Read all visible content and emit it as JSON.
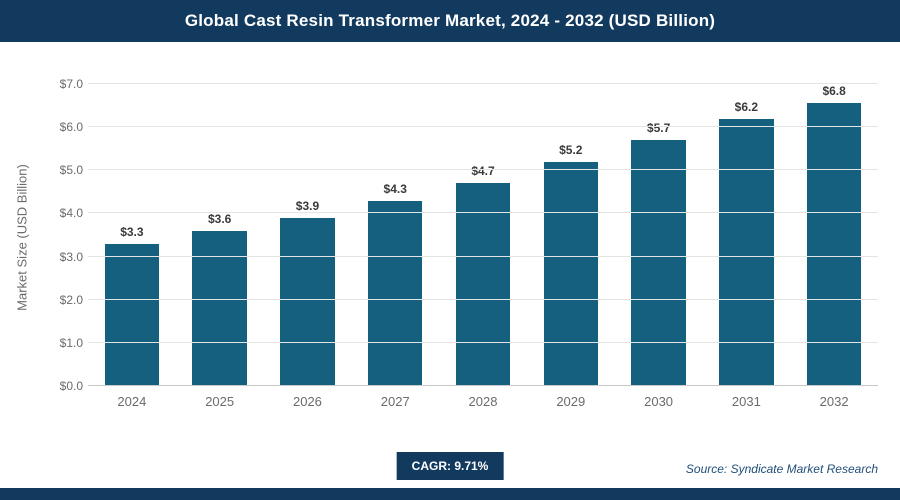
{
  "header": {
    "title": "Global Cast Resin Transformer Market, 2024 - 2032 (USD Billion)"
  },
  "chart_data": {
    "type": "bar",
    "title": "Global Cast Resin Transformer Market, 2024 - 2032 (USD Billion)",
    "categories": [
      "2024",
      "2025",
      "2026",
      "2027",
      "2028",
      "2029",
      "2030",
      "2031",
      "2032"
    ],
    "values": [
      3.3,
      3.6,
      3.9,
      4.3,
      4.7,
      5.2,
      5.7,
      6.2,
      6.8
    ],
    "value_labels": [
      "$3.3",
      "$3.6",
      "$3.9",
      "$4.3",
      "$4.7",
      "$5.2",
      "$5.7",
      "$6.2",
      "$6.8"
    ],
    "xlabel": "",
    "ylabel": "Market Size (USD Billion)",
    "ylim": [
      0,
      7
    ],
    "yticks": [
      {
        "label": "$0.0",
        "value": 0
      },
      {
        "label": "$1.0",
        "value": 1
      },
      {
        "label": "$2.0",
        "value": 2
      },
      {
        "label": "$3.0",
        "value": 3
      },
      {
        "label": "$4.0",
        "value": 4
      },
      {
        "label": "$5.0",
        "value": 5
      },
      {
        "label": "$6.0",
        "value": 6
      },
      {
        "label": "$7.0",
        "value": 7
      }
    ],
    "grid": "horizontal",
    "legend": "none"
  },
  "footer": {
    "cagr_label": "CAGR: 9.71%",
    "source": "Source: Syndicate Market Research"
  },
  "colors": {
    "header_bg": "#12395e",
    "bar": "#15607e",
    "badge_bg": "#12395e",
    "bottom_strip": "#12395e",
    "source_text": "#1f4e79"
  }
}
